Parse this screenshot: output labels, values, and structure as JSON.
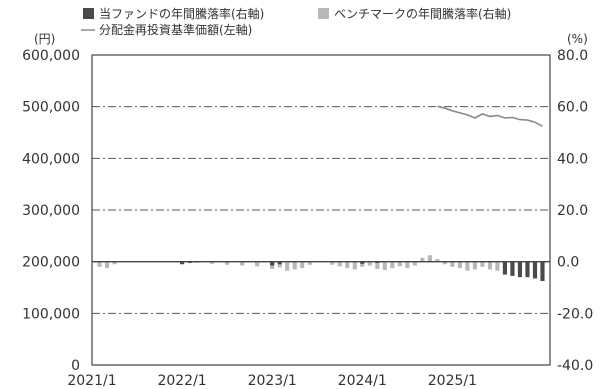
{
  "chart_data": {
    "type": "bar+line",
    "legend": [
      {
        "key": "fund",
        "label": "当ファンドの年間騰落率(右軸)",
        "marker": "square",
        "color": "#4a4a4a"
      },
      {
        "key": "benchmark",
        "label": "ベンチマークの年間騰落率(右軸)",
        "marker": "square",
        "color": "#b8b8b8"
      },
      {
        "key": "nav",
        "label": "分配金再投資基準価額(左軸)",
        "marker": "line",
        "color": "#8a8a8a"
      }
    ],
    "left_axis": {
      "unit": "(円)",
      "min": 0,
      "max": 600000,
      "ticks": [
        "0",
        "100,000",
        "200,000",
        "300,000",
        "400,000",
        "500,000",
        "600,000"
      ],
      "tick_values": [
        0,
        100000,
        200000,
        300000,
        400000,
        500000,
        600000
      ]
    },
    "right_axis": {
      "unit": "(%)",
      "min": -40,
      "max": 80,
      "ticks": [
        "-40.0",
        "-20.0",
        "0.0",
        "20.0",
        "40.0",
        "60.0",
        "80.0"
      ],
      "tick_values": [
        -40,
        -20,
        0,
        20,
        40,
        60,
        80
      ]
    },
    "x_axis": {
      "start": "2021-01",
      "end": "2026-02",
      "ticks": [
        "2021/1",
        "2022/1",
        "2023/1",
        "2024/1",
        "2025/1"
      ],
      "tick_dates": [
        "2021-01",
        "2022-01",
        "2023-01",
        "2024-01",
        "2025-01"
      ]
    },
    "grid": "horizontal-dashdot",
    "series": [
      {
        "key": "nav",
        "type": "line",
        "axis": "left",
        "points": [
          [
            "2024-11",
            500500
          ],
          [
            "2024-12",
            497000
          ],
          [
            "2025-01",
            492000
          ],
          [
            "2025-02",
            488000
          ],
          [
            "2025-03",
            484000
          ],
          [
            "2025-04",
            478000
          ],
          [
            "2025-05",
            486000
          ],
          [
            "2025-06",
            481000
          ],
          [
            "2025-07",
            483000
          ],
          [
            "2025-08",
            478000
          ],
          [
            "2025-09",
            479000
          ],
          [
            "2025-10",
            475000
          ],
          [
            "2025-11",
            474000
          ],
          [
            "2025-12",
            470000
          ],
          [
            "2026-01",
            462000
          ]
        ]
      },
      {
        "key": "benchmark",
        "type": "bar",
        "axis": "right",
        "points": [
          [
            "2021-02",
            -2
          ],
          [
            "2021-03",
            -2.5
          ],
          [
            "2021-04",
            -1
          ],
          [
            "2022-03",
            -0.5
          ],
          [
            "2022-05",
            -0.8
          ],
          [
            "2022-07",
            -1.2
          ],
          [
            "2022-09",
            -1.5
          ],
          [
            "2022-11",
            -1.8
          ],
          [
            "2023-01",
            -2.8
          ],
          [
            "2023-02",
            -2.2
          ],
          [
            "2023-03",
            -3.5
          ],
          [
            "2023-04",
            -3
          ],
          [
            "2023-05",
            -2.5
          ],
          [
            "2023-06",
            -1.2
          ],
          [
            "2023-09",
            -1.2
          ],
          [
            "2023-10",
            -1.8
          ],
          [
            "2023-11",
            -2.5
          ],
          [
            "2023-12",
            -3
          ],
          [
            "2024-01",
            -2
          ],
          [
            "2024-02",
            -1.5
          ],
          [
            "2024-03",
            -2.8
          ],
          [
            "2024-04",
            -3.2
          ],
          [
            "2024-05",
            -2.5
          ],
          [
            "2024-06",
            -1.8
          ],
          [
            "2024-07",
            -2.5
          ],
          [
            "2024-08",
            -1.5
          ],
          [
            "2024-09",
            1.5
          ],
          [
            "2024-10",
            2.5
          ],
          [
            "2024-11",
            1
          ],
          [
            "2024-12",
            -1
          ],
          [
            "2025-01",
            -2
          ],
          [
            "2025-02",
            -2.5
          ],
          [
            "2025-03",
            -3.5
          ],
          [
            "2025-04",
            -3
          ],
          [
            "2025-05",
            -2
          ],
          [
            "2025-06",
            -3
          ],
          [
            "2025-07",
            -3.5
          ],
          [
            "2025-08",
            -4
          ],
          [
            "2025-09",
            -3.5
          ],
          [
            "2025-10",
            -4
          ],
          [
            "2025-11",
            -4.5
          ],
          [
            "2025-12",
            -3.5
          ],
          [
            "2026-01",
            -4
          ]
        ]
      },
      {
        "key": "fund",
        "type": "bar",
        "axis": "right",
        "points": [
          [
            "2022-01",
            -1
          ],
          [
            "2022-02",
            -0.5
          ],
          [
            "2023-01",
            -1.5
          ],
          [
            "2023-02",
            -1
          ],
          [
            "2024-01",
            -0.8
          ],
          [
            "2024-03",
            -0.5
          ],
          [
            "2025-08",
            -5
          ],
          [
            "2025-09",
            -5.5
          ],
          [
            "2025-10",
            -6
          ],
          [
            "2025-11",
            -6
          ],
          [
            "2025-12",
            -6.5
          ],
          [
            "2026-01",
            -7.5
          ]
        ]
      }
    ]
  }
}
